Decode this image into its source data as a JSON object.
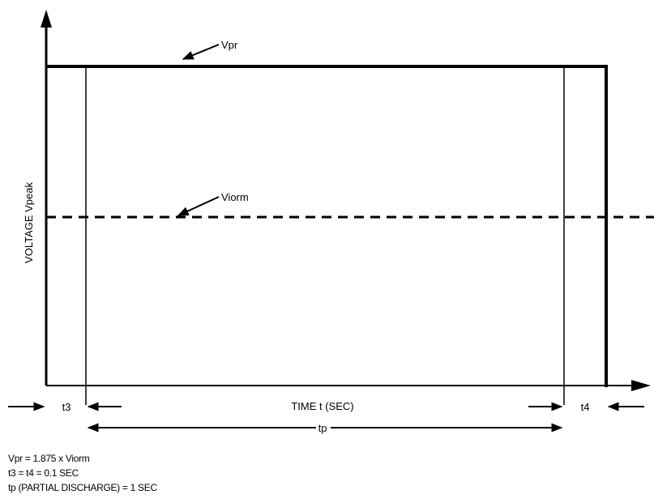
{
  "diagram": {
    "y_axis_label": "VOLTAGE Vpeak",
    "x_axis_label": "TIME t (SEC)",
    "vpr_label": "Vpr",
    "viorm_label": "Viorm",
    "t3_label": "t3",
    "t4_label": "t4",
    "tp_label": "tp"
  },
  "notes": {
    "line1": "Vpr = 1.875 x Viorm",
    "line2": "t3 = t4 = 0.1 SEC",
    "line3": "tp (PARTIAL DISCHARGE) = 1 SEC"
  },
  "colors": {
    "line": "#000000",
    "background": "#ffffff"
  }
}
